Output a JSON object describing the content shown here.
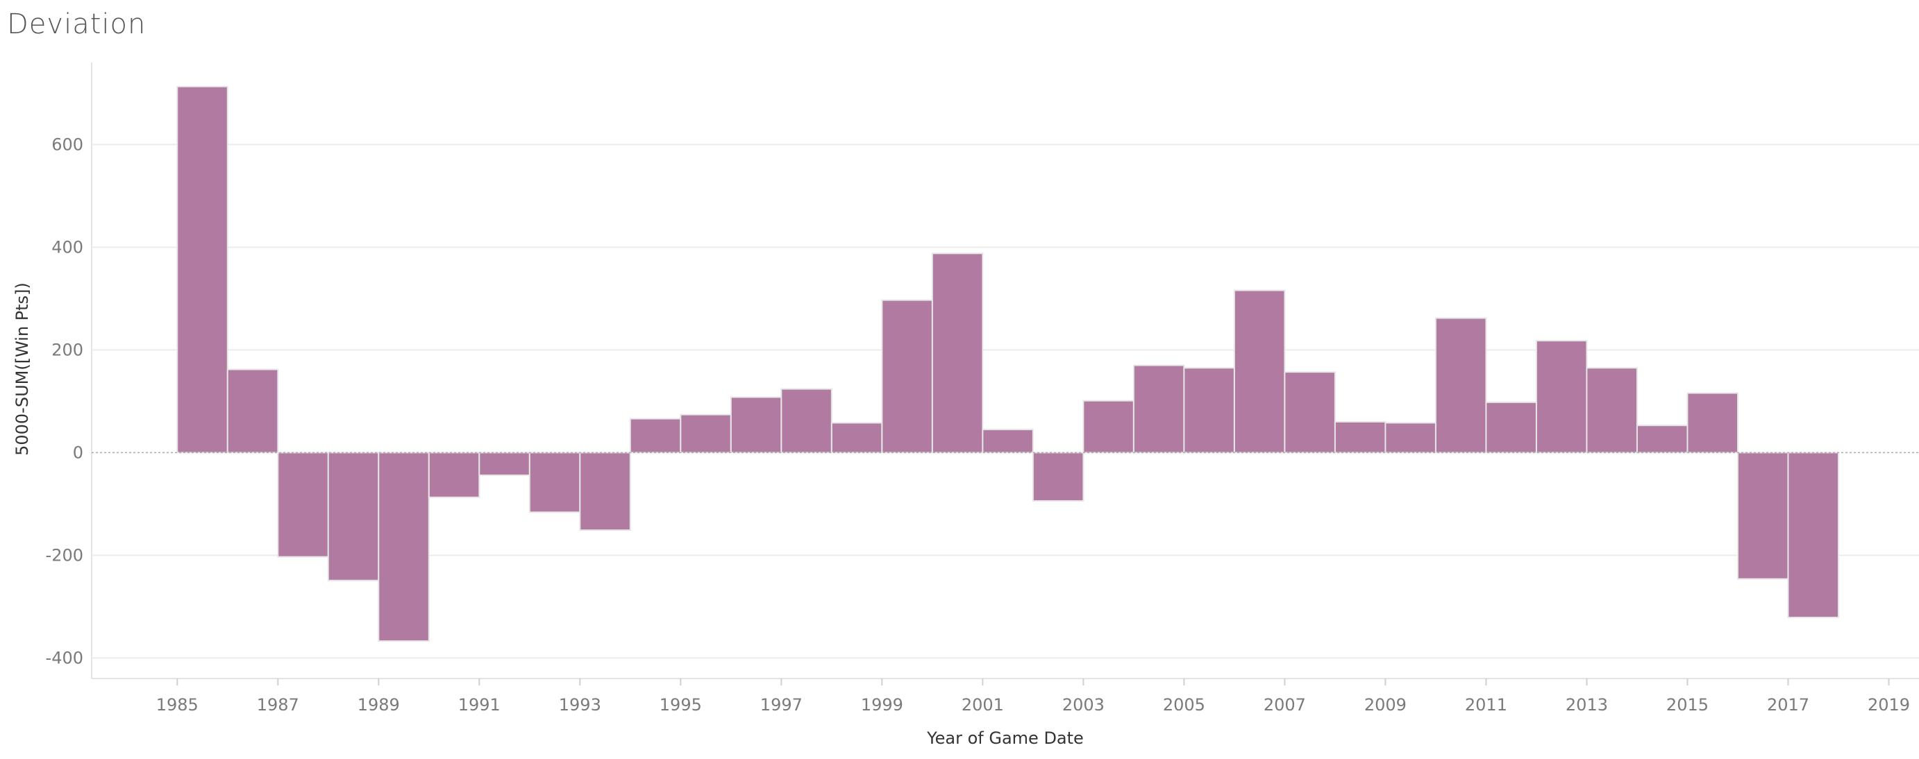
{
  "chart_data": {
    "type": "bar",
    "title": "Deviation",
    "xlabel": "Year of Game Date",
    "ylabel": "5000-SUM([Win Pts])",
    "categories": [
      1985,
      1986,
      1987,
      1988,
      1989,
      1990,
      1991,
      1992,
      1993,
      1994,
      1995,
      1996,
      1997,
      1998,
      1999,
      2000,
      2001,
      2002,
      2003,
      2004,
      2005,
      2006,
      2007,
      2008,
      2009,
      2010,
      2011,
      2012,
      2013,
      2014,
      2015,
      2016,
      2017
    ],
    "values": [
      713,
      162,
      -203,
      -249,
      -367,
      -87,
      -44,
      -116,
      -151,
      66,
      74,
      108,
      124,
      58,
      297,
      388,
      45,
      -94,
      101,
      170,
      165,
      316,
      157,
      60,
      58,
      262,
      98,
      218,
      165,
      53,
      116,
      -246,
      -321
    ],
    "x_ticks": [
      1985,
      1987,
      1989,
      1991,
      1993,
      1995,
      1997,
      1999,
      2001,
      2003,
      2005,
      2007,
      2009,
      2011,
      2013,
      2015,
      2017,
      2019
    ],
    "y_ticks": [
      -400,
      -200,
      0,
      200,
      400,
      600
    ],
    "xlim": [
      1983.3,
      2019.6
    ],
    "ylim": [
      -440,
      760
    ],
    "grid": true,
    "bar_color": "#b07aa1",
    "bar_edge_color": "#e6e6e6",
    "zero_line_color": "#aaaaaa"
  }
}
